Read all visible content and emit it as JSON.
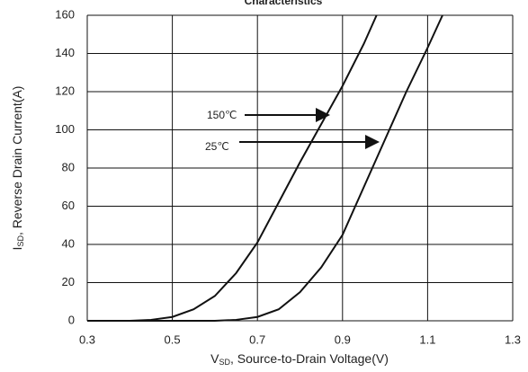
{
  "chart_data": {
    "type": "line",
    "title": "Characteristics",
    "x_label": {
      "main": "V",
      "sub": "SD",
      "rest": ", Source-to-Drain Voltage(V)"
    },
    "y_label": {
      "main": "I",
      "sub": "SD",
      "rest": ", Reverse Drain Current(A)"
    },
    "xlim": [
      0.3,
      1.3
    ],
    "xticks": [
      0.3,
      0.5,
      0.7,
      0.9,
      1.1,
      1.3
    ],
    "ylim": [
      0,
      160
    ],
    "yticks": [
      0,
      20,
      40,
      60,
      80,
      100,
      120,
      140,
      160
    ],
    "grid": true,
    "series": [
      {
        "name": "150℃",
        "color": "#111111",
        "x": [
          0.3,
          0.4,
          0.45,
          0.5,
          0.55,
          0.6,
          0.65,
          0.7,
          0.75,
          0.8,
          0.85,
          0.9,
          0.95,
          0.98
        ],
        "values": [
          0,
          0,
          0.5,
          2,
          6,
          13,
          25,
          41,
          62,
          83,
          103,
          123,
          145,
          160
        ]
      },
      {
        "name": "25℃",
        "color": "#111111",
        "x": [
          0.3,
          0.6,
          0.65,
          0.7,
          0.75,
          0.8,
          0.85,
          0.9,
          0.95,
          1.0,
          1.05,
          1.1,
          1.135
        ],
        "values": [
          0,
          0,
          0.5,
          2,
          6,
          15,
          28,
          45,
          70,
          95,
          120,
          143,
          160
        ]
      }
    ]
  }
}
